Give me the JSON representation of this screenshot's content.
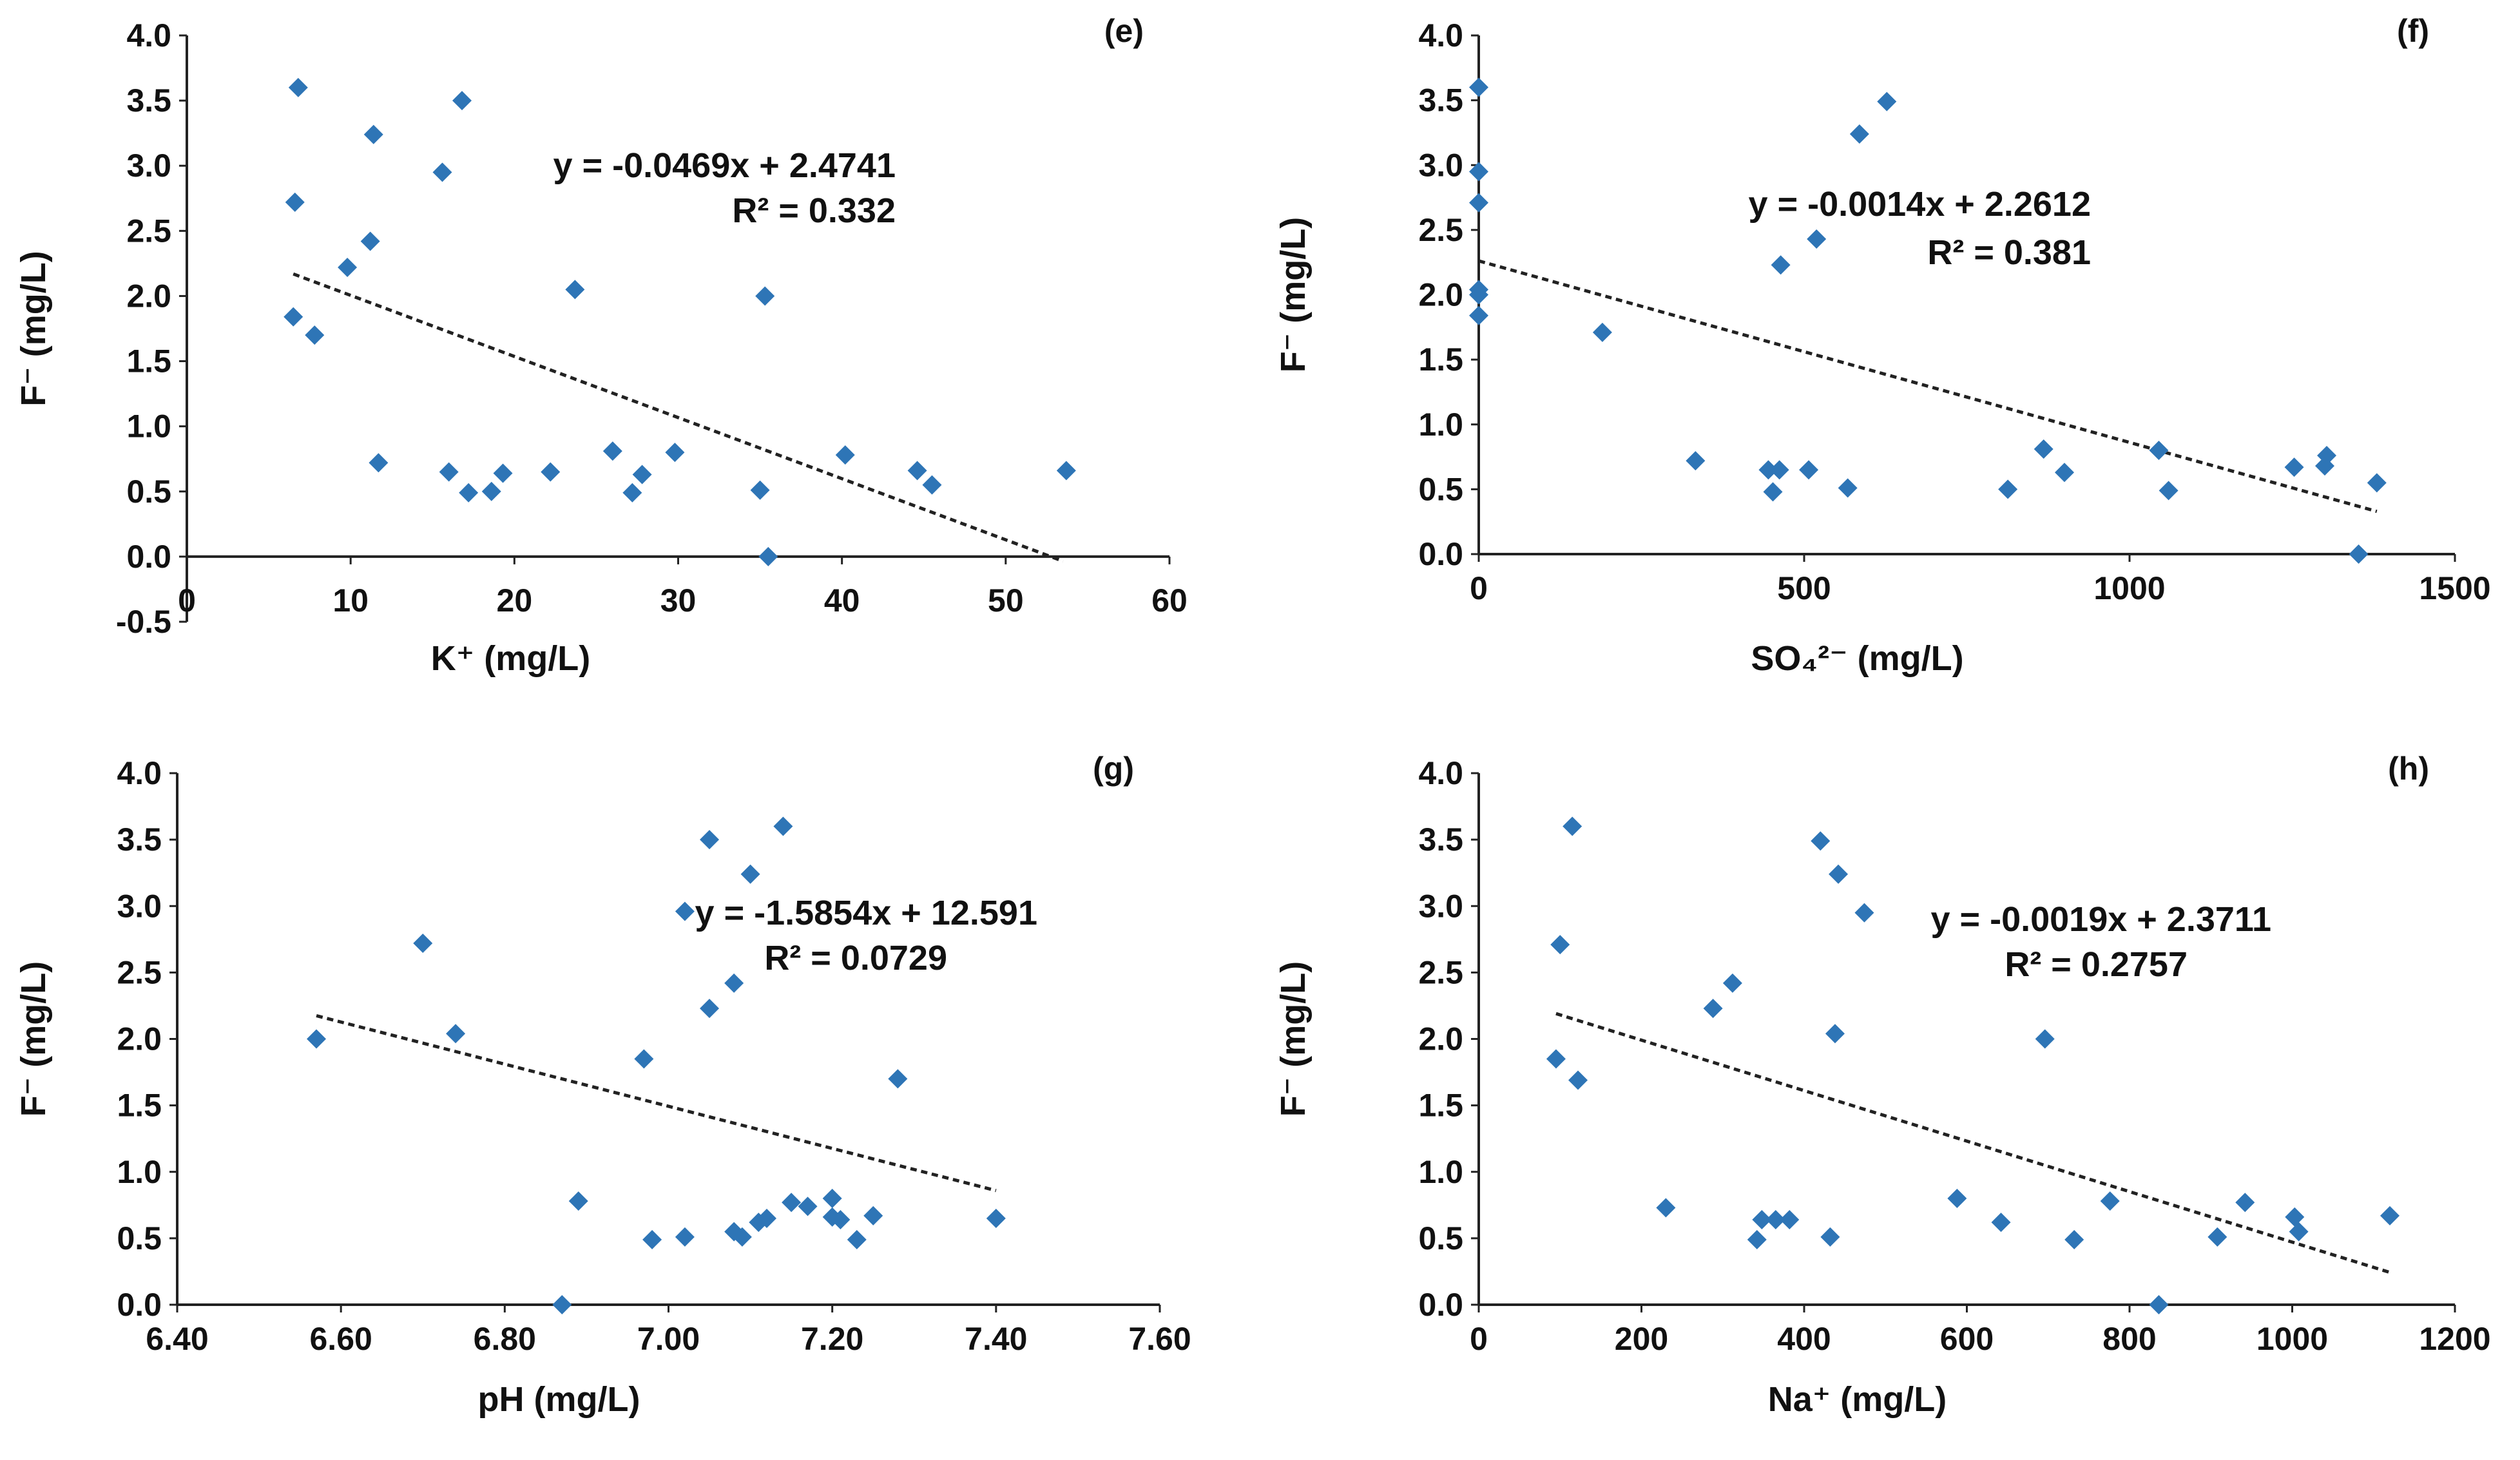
{
  "chart_data": [
    {
      "type": "scatter",
      "panel_label": "(e)",
      "xlabel": "K⁺ (mg/L)",
      "ylabel": "F⁻ (mg/L)",
      "xlim": [
        0,
        60
      ],
      "ylim": [
        -0.5,
        4.0
      ],
      "xticks": [
        "0",
        "10",
        "20",
        "30",
        "40",
        "50",
        "60"
      ],
      "yticks": [
        "-0.5",
        "0.0",
        "0.5",
        "1.0",
        "1.5",
        "2.0",
        "2.5",
        "3.0",
        "3.5",
        "4.0"
      ],
      "equation": "y = -0.0469x + 2.4741",
      "r_squared": "R² = 0.332",
      "trendline": {
        "slope": -0.0469,
        "intercept": 2.4741,
        "x_range": [
          6.5,
          53.5
        ]
      },
      "x": [
        6.5,
        6.6,
        6.8,
        7.8,
        9.8,
        11.2,
        11.4,
        11.7,
        15.6,
        16.0,
        16.8,
        17.2,
        18.6,
        19.3,
        22.2,
        23.7,
        26.0,
        27.2,
        27.8,
        29.8,
        35.0,
        35.3,
        35.5,
        40.2,
        44.6,
        45.5,
        53.7
      ],
      "y": [
        1.84,
        2.72,
        3.6,
        1.7,
        2.22,
        2.42,
        3.24,
        0.72,
        2.95,
        0.65,
        3.5,
        0.49,
        0.5,
        0.64,
        0.65,
        2.05,
        0.81,
        0.49,
        0.63,
        0.8,
        0.51,
        2.0,
        0.0,
        0.78,
        0.66,
        0.55,
        0.66
      ]
    },
    {
      "type": "scatter",
      "panel_label": "(f)",
      "xlabel": "SO₄²⁻ (mg/L)",
      "ylabel": "F⁻ (mg/L)",
      "xlim": [
        0,
        1500
      ],
      "ylim": [
        0.0,
        4.0
      ],
      "xticks": [
        "0",
        "500",
        "1000",
        "1500"
      ],
      "yticks": [
        "0.0",
        "0.5",
        "1.0",
        "1.5",
        "2.0",
        "2.5",
        "3.0",
        "3.5",
        "4.0"
      ],
      "equation": "y = -0.0014x + 2.2612",
      "r_squared": "R² = 0.381",
      "trendline": {
        "slope": -0.0014,
        "intercept": 2.2612,
        "x_range": [
          0,
          1380
        ]
      },
      "x": [
        0,
        0,
        0,
        0,
        0,
        0,
        190,
        333,
        445,
        452,
        462,
        464,
        507,
        519,
        567,
        585,
        627,
        813,
        868,
        900,
        1045,
        1060,
        1253,
        1300,
        1303,
        1352,
        1380
      ],
      "y": [
        1.84,
        2.0,
        2.04,
        2.71,
        2.95,
        3.6,
        1.71,
        0.72,
        0.65,
        0.48,
        0.65,
        2.23,
        0.65,
        2.43,
        0.51,
        3.24,
        3.49,
        0.5,
        0.81,
        0.63,
        0.8,
        0.49,
        0.67,
        0.68,
        0.76,
        0.0,
        0.55
      ]
    },
    {
      "type": "scatter",
      "panel_label": "(g)",
      "xlabel": "pH (mg/L)",
      "ylabel": "F⁻ (mg/L)",
      "xlim": [
        6.4,
        7.6
      ],
      "ylim": [
        0.0,
        4.0
      ],
      "xticks": [
        "6.40",
        "6.60",
        "6.80",
        "7.00",
        "7.20",
        "7.40",
        "7.60"
      ],
      "yticks": [
        "0.0",
        "0.5",
        "1.0",
        "1.5",
        "2.0",
        "2.5",
        "3.0",
        "3.5",
        "4.0"
      ],
      "equation": "y = -1.5854x + 12.591",
      "r_squared": "R² = 0.0729",
      "trendline": {
        "slope": -1.5854,
        "intercept": 12.591,
        "x_range": [
          6.57,
          7.4
        ]
      },
      "x": [
        6.57,
        6.7,
        6.74,
        6.87,
        6.89,
        6.97,
        6.98,
        7.02,
        7.02,
        7.05,
        7.05,
        7.08,
        7.08,
        7.09,
        7.1,
        7.11,
        7.12,
        7.14,
        7.15,
        7.17,
        7.2,
        7.2,
        7.21,
        7.23,
        7.25,
        7.28,
        7.4
      ],
      "y": [
        2.0,
        2.72,
        2.04,
        0.0,
        0.78,
        1.85,
        0.49,
        0.51,
        2.96,
        3.5,
        2.23,
        2.42,
        0.55,
        0.51,
        3.24,
        0.62,
        0.65,
        3.6,
        0.77,
        0.74,
        0.8,
        0.66,
        0.64,
        0.49,
        0.67,
        1.7,
        0.65
      ]
    },
    {
      "type": "scatter",
      "panel_label": "(h)",
      "xlabel": "Na⁺ (mg/L)",
      "ylabel": "F⁻ (mg/L)",
      "xlim": [
        0,
        1200
      ],
      "ylim": [
        0.0,
        4.0
      ],
      "xticks": [
        "0",
        "200",
        "400",
        "600",
        "800",
        "1000",
        "1200"
      ],
      "yticks": [
        "0.0",
        "0.5",
        "1.0",
        "1.5",
        "2.0",
        "2.5",
        "3.0",
        "3.5",
        "4.0"
      ],
      "equation": "y = -0.0019x + 2.3711",
      "r_squared": "R² = 0.2757",
      "trendline": {
        "slope": -0.0019,
        "intercept": 2.3711,
        "x_range": [
          95,
          1120
        ]
      },
      "x": [
        95,
        100,
        115,
        122,
        230,
        288,
        312,
        342,
        348,
        365,
        382,
        420,
        432,
        438,
        442,
        474,
        588,
        642,
        696,
        732,
        776,
        908,
        942,
        1003,
        1008,
        1120,
        836
      ],
      "y": [
        1.85,
        2.71,
        3.6,
        1.69,
        0.73,
        2.23,
        2.42,
        0.49,
        0.64,
        0.64,
        0.64,
        3.49,
        0.51,
        2.04,
        3.24,
        2.95,
        0.8,
        0.62,
        2.0,
        0.49,
        0.78,
        0.51,
        0.77,
        0.66,
        0.55,
        0.67,
        0.0
      ]
    }
  ]
}
